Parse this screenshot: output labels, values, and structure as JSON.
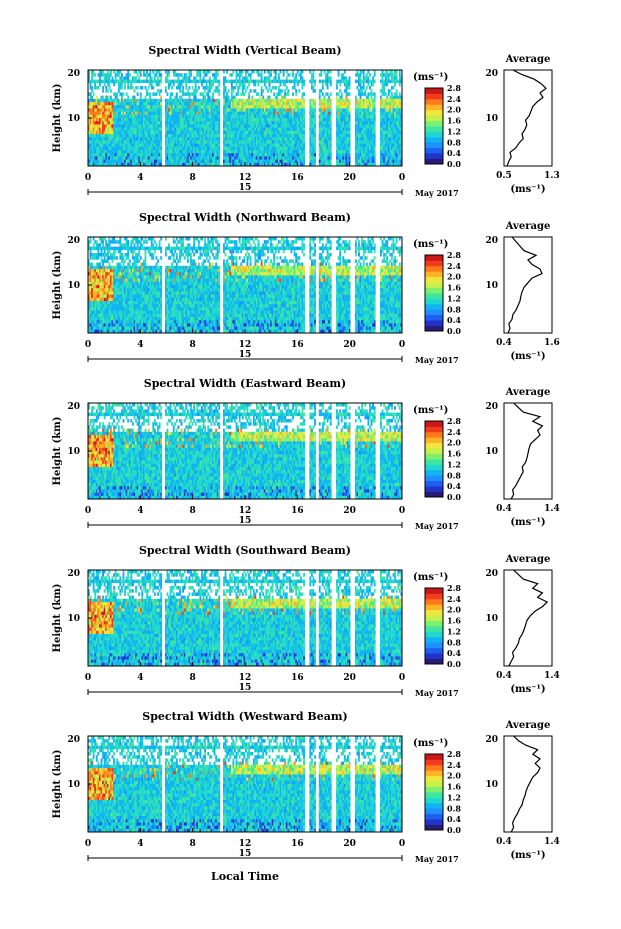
{
  "colormap": [
    "#2a1a78",
    "#2233c8",
    "#1e5ef0",
    "#1e90ff",
    "#10b4f0",
    "#20d8d0",
    "#3fe6a0",
    "#7ef070",
    "#c6f04a",
    "#f0e640",
    "#ffb428",
    "#ff7a1c",
    "#f23a1c",
    "#c81818"
  ],
  "shared": {
    "height_label": "Height (km)",
    "colorbar_unit": "(ms⁻¹)",
    "colorbar_ticks": [
      "0.0",
      "0.4",
      "0.8",
      "1.2",
      "1.6",
      "2.0",
      "2.4",
      "2.8"
    ],
    "x_ticks": [
      "0",
      "4",
      "8",
      "12",
      "16",
      "20",
      "0"
    ],
    "y_ticks": [
      "20",
      "10"
    ],
    "date_label": "15",
    "month_year": "May 2017",
    "avg_title": "Average",
    "avg_unit": "(ms⁻¹)",
    "xlabel": "Local Time"
  },
  "chart_data": [
    {
      "type": "heatmap",
      "title": "Spectral Width (Vertical Beam)",
      "xlabel": "Local Time",
      "ylabel": "Height (km)",
      "xlim": [
        0,
        24
      ],
      "ylim": [
        2,
        20
      ],
      "zlim": [
        0,
        2.8
      ],
      "z_unit": "ms⁻¹",
      "inset": {
        "type": "line",
        "title": "Average",
        "xlabel": "(ms⁻¹)",
        "x_ticks": [
          "0.5",
          "1.3"
        ],
        "xlim": [
          0.5,
          1.3
        ],
        "ylim": [
          2,
          20
        ],
        "profile": [
          0.55,
          0.58,
          0.62,
          0.6,
          0.7,
          0.75,
          0.82,
          0.8,
          0.85,
          0.88,
          0.86,
          0.92,
          0.95,
          0.98,
          1.05,
          1.15,
          1.1,
          1.2,
          1.12,
          1.0,
          0.8,
          0.65
        ]
      }
    },
    {
      "type": "heatmap",
      "title": "Spectral Width (Northward Beam)",
      "xlabel": "Local Time",
      "ylabel": "Height (km)",
      "xlim": [
        0,
        24
      ],
      "ylim": [
        2,
        20
      ],
      "zlim": [
        0,
        2.8
      ],
      "z_unit": "ms⁻¹",
      "inset": {
        "type": "line",
        "title": "Average",
        "xlabel": "(ms⁻¹)",
        "x_ticks": [
          "0.4",
          "1.6"
        ],
        "xlim": [
          0.4,
          1.6
        ],
        "ylim": [
          2,
          20
        ],
        "profile": [
          0.5,
          0.55,
          0.52,
          0.6,
          0.62,
          0.7,
          0.75,
          0.8,
          0.82,
          0.85,
          0.9,
          1.0,
          1.1,
          1.35,
          1.3,
          1.1,
          1.0,
          1.2,
          0.9,
          0.8,
          0.7,
          0.6
        ]
      }
    },
    {
      "type": "heatmap",
      "title": "Spectral Width (Eastward Beam)",
      "xlabel": "Local Time",
      "ylabel": "Height (km)",
      "xlim": [
        0,
        24
      ],
      "ylim": [
        2,
        20
      ],
      "zlim": [
        0,
        2.8
      ],
      "z_unit": "ms⁻¹",
      "inset": {
        "type": "line",
        "title": "Average",
        "xlabel": "(ms⁻¹)",
        "x_ticks": [
          "0.4",
          "1.4"
        ],
        "xlim": [
          0.4,
          1.4
        ],
        "ylim": [
          2,
          20
        ],
        "profile": [
          0.55,
          0.6,
          0.58,
          0.65,
          0.7,
          0.75,
          0.8,
          0.78,
          0.85,
          0.88,
          0.9,
          0.92,
          0.95,
          1.05,
          1.15,
          1.1,
          1.2,
          1.0,
          1.15,
          0.8,
          0.7,
          0.6
        ]
      }
    },
    {
      "type": "heatmap",
      "title": "Spectral Width (Southward Beam)",
      "xlabel": "Local Time",
      "ylabel": "Height (km)",
      "xlim": [
        0,
        24
      ],
      "ylim": [
        2,
        20
      ],
      "zlim": [
        0,
        2.8
      ],
      "z_unit": "ms⁻¹",
      "inset": {
        "type": "line",
        "title": "Average",
        "xlabel": "(ms⁻¹)",
        "x_ticks": [
          "0.4",
          "1.4"
        ],
        "xlim": [
          0.4,
          1.4
        ],
        "ylim": [
          2,
          20
        ],
        "profile": [
          0.5,
          0.55,
          0.6,
          0.58,
          0.65,
          0.7,
          0.72,
          0.78,
          0.82,
          0.85,
          0.88,
          0.95,
          1.05,
          1.2,
          1.3,
          1.1,
          1.2,
          1.0,
          1.1,
          0.8,
          0.7,
          0.6
        ]
      }
    },
    {
      "type": "heatmap",
      "title": "Spectral Width (Westward Beam)",
      "xlabel": "Local Time",
      "ylabel": "Height (km)",
      "xlim": [
        0,
        24
      ],
      "ylim": [
        2,
        20
      ],
      "zlim": [
        0,
        2.8
      ],
      "z_unit": "ms⁻¹",
      "inset": {
        "type": "line",
        "title": "Average",
        "xlabel": "(ms⁻¹)",
        "x_ticks": [
          "0.4",
          "1.4"
        ],
        "xlim": [
          0.4,
          1.4
        ],
        "ylim": [
          2,
          20
        ],
        "profile": [
          0.55,
          0.6,
          0.58,
          0.62,
          0.68,
          0.72,
          0.78,
          0.8,
          0.84,
          0.86,
          0.9,
          0.95,
          1.0,
          1.1,
          1.15,
          1.05,
          1.15,
          1.0,
          1.1,
          0.85,
          0.7,
          0.6
        ]
      }
    }
  ]
}
